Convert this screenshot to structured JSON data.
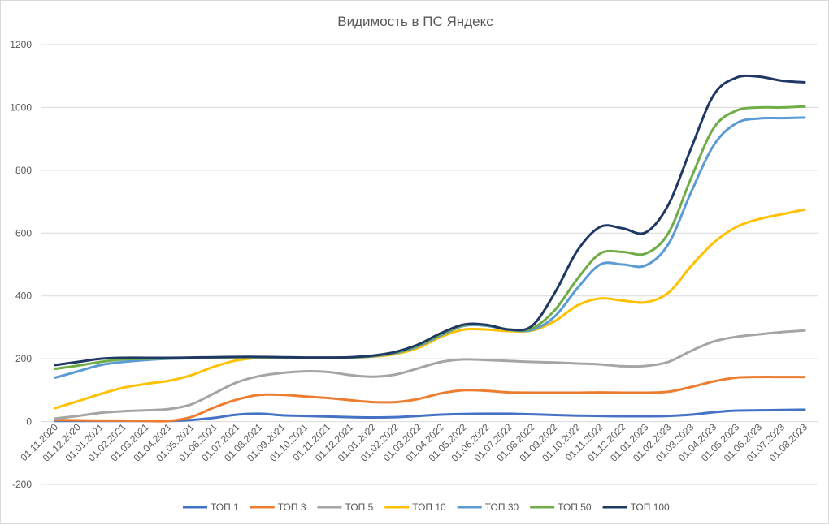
{
  "chart_data": {
    "type": "line",
    "title": "Видимость в ПС Яндекс",
    "xlabel": "",
    "ylabel": "",
    "ylim": [
      -200,
      1200
    ],
    "yticks": [
      -200,
      0,
      200,
      400,
      600,
      800,
      1000,
      1200
    ],
    "grid": true,
    "legend": "bottom",
    "categories": [
      "01.11.2020",
      "01.12.2020",
      "01.01.2021",
      "01.02.2021",
      "01.03.2021",
      "01.04.2021",
      "01.05.2021",
      "01.06.2021",
      "01.07.2021",
      "01.08.2021",
      "01.09.2021",
      "01.10.2021",
      "01.11.2021",
      "01.12.2021",
      "01.01.2022",
      "01.02.2022",
      "01.03.2022",
      "01.04.2022",
      "01.05.2022",
      "01.06.2022",
      "01.07.2022",
      "01.08.2022",
      "01.09.2022",
      "01.10.2022",
      "01.11.2022",
      "01.12.2022",
      "01.01.2023",
      "01.02.2023",
      "01.03.2023",
      "01.04.2023",
      "01.05.2023",
      "01.06.2023",
      "01.07.2023",
      "01.08.2023"
    ],
    "series": [
      {
        "name": "ТОП 1",
        "color": "#4472c4",
        "values": [
          2,
          2,
          2,
          2,
          2,
          2,
          5,
          12,
          22,
          25,
          20,
          18,
          16,
          14,
          13,
          14,
          18,
          22,
          24,
          25,
          25,
          23,
          21,
          19,
          18,
          17,
          17,
          18,
          22,
          30,
          35,
          36,
          37,
          38
        ]
      },
      {
        "name": "ТОП 3",
        "color": "#ed7d31",
        "values": [
          5,
          4,
          3,
          3,
          2,
          2,
          15,
          45,
          70,
          85,
          85,
          80,
          75,
          68,
          62,
          62,
          72,
          90,
          100,
          98,
          93,
          92,
          92,
          92,
          93,
          92,
          92,
          95,
          110,
          128,
          140,
          142,
          142,
          142
        ]
      },
      {
        "name": "ТОП 5",
        "color": "#a5a5a5",
        "values": [
          10,
          18,
          28,
          33,
          36,
          40,
          55,
          90,
          125,
          145,
          155,
          160,
          158,
          148,
          143,
          150,
          170,
          190,
          198,
          196,
          193,
          190,
          188,
          185,
          182,
          176,
          177,
          190,
          225,
          255,
          270,
          278,
          285,
          290
        ]
      },
      {
        "name": "ТОП 10",
        "color": "#ffc000",
        "values": [
          43,
          65,
          88,
          108,
          120,
          130,
          148,
          175,
          195,
          203,
          203,
          203,
          203,
          204,
          207,
          215,
          235,
          270,
          293,
          293,
          288,
          290,
          320,
          370,
          392,
          385,
          380,
          410,
          495,
          570,
          620,
          645,
          660,
          675
        ]
      },
      {
        "name": "ТОП 30",
        "color": "#5b9bd5",
        "values": [
          140,
          160,
          180,
          190,
          196,
          200,
          202,
          204,
          205,
          205,
          204,
          203,
          203,
          204,
          208,
          218,
          240,
          275,
          305,
          305,
          292,
          292,
          335,
          425,
          500,
          500,
          497,
          565,
          730,
          880,
          950,
          965,
          966,
          968
        ]
      },
      {
        "name": "ТОП 50",
        "color": "#70ad47",
        "values": [
          168,
          178,
          190,
          198,
          200,
          201,
          202,
          204,
          205,
          205,
          204,
          203,
          203,
          204,
          209,
          220,
          243,
          278,
          307,
          307,
          293,
          297,
          355,
          455,
          535,
          540,
          535,
          600,
          775,
          935,
          990,
          1000,
          1000,
          1003
        ]
      },
      {
        "name": "ТОП 100",
        "color": "#1f3864",
        "values": [
          180,
          190,
          200,
          203,
          203,
          203,
          204,
          205,
          206,
          206,
          205,
          204,
          204,
          205,
          210,
          222,
          246,
          282,
          309,
          308,
          293,
          305,
          410,
          545,
          620,
          615,
          602,
          690,
          870,
          1040,
          1095,
          1098,
          1085,
          1080
        ]
      }
    ]
  }
}
